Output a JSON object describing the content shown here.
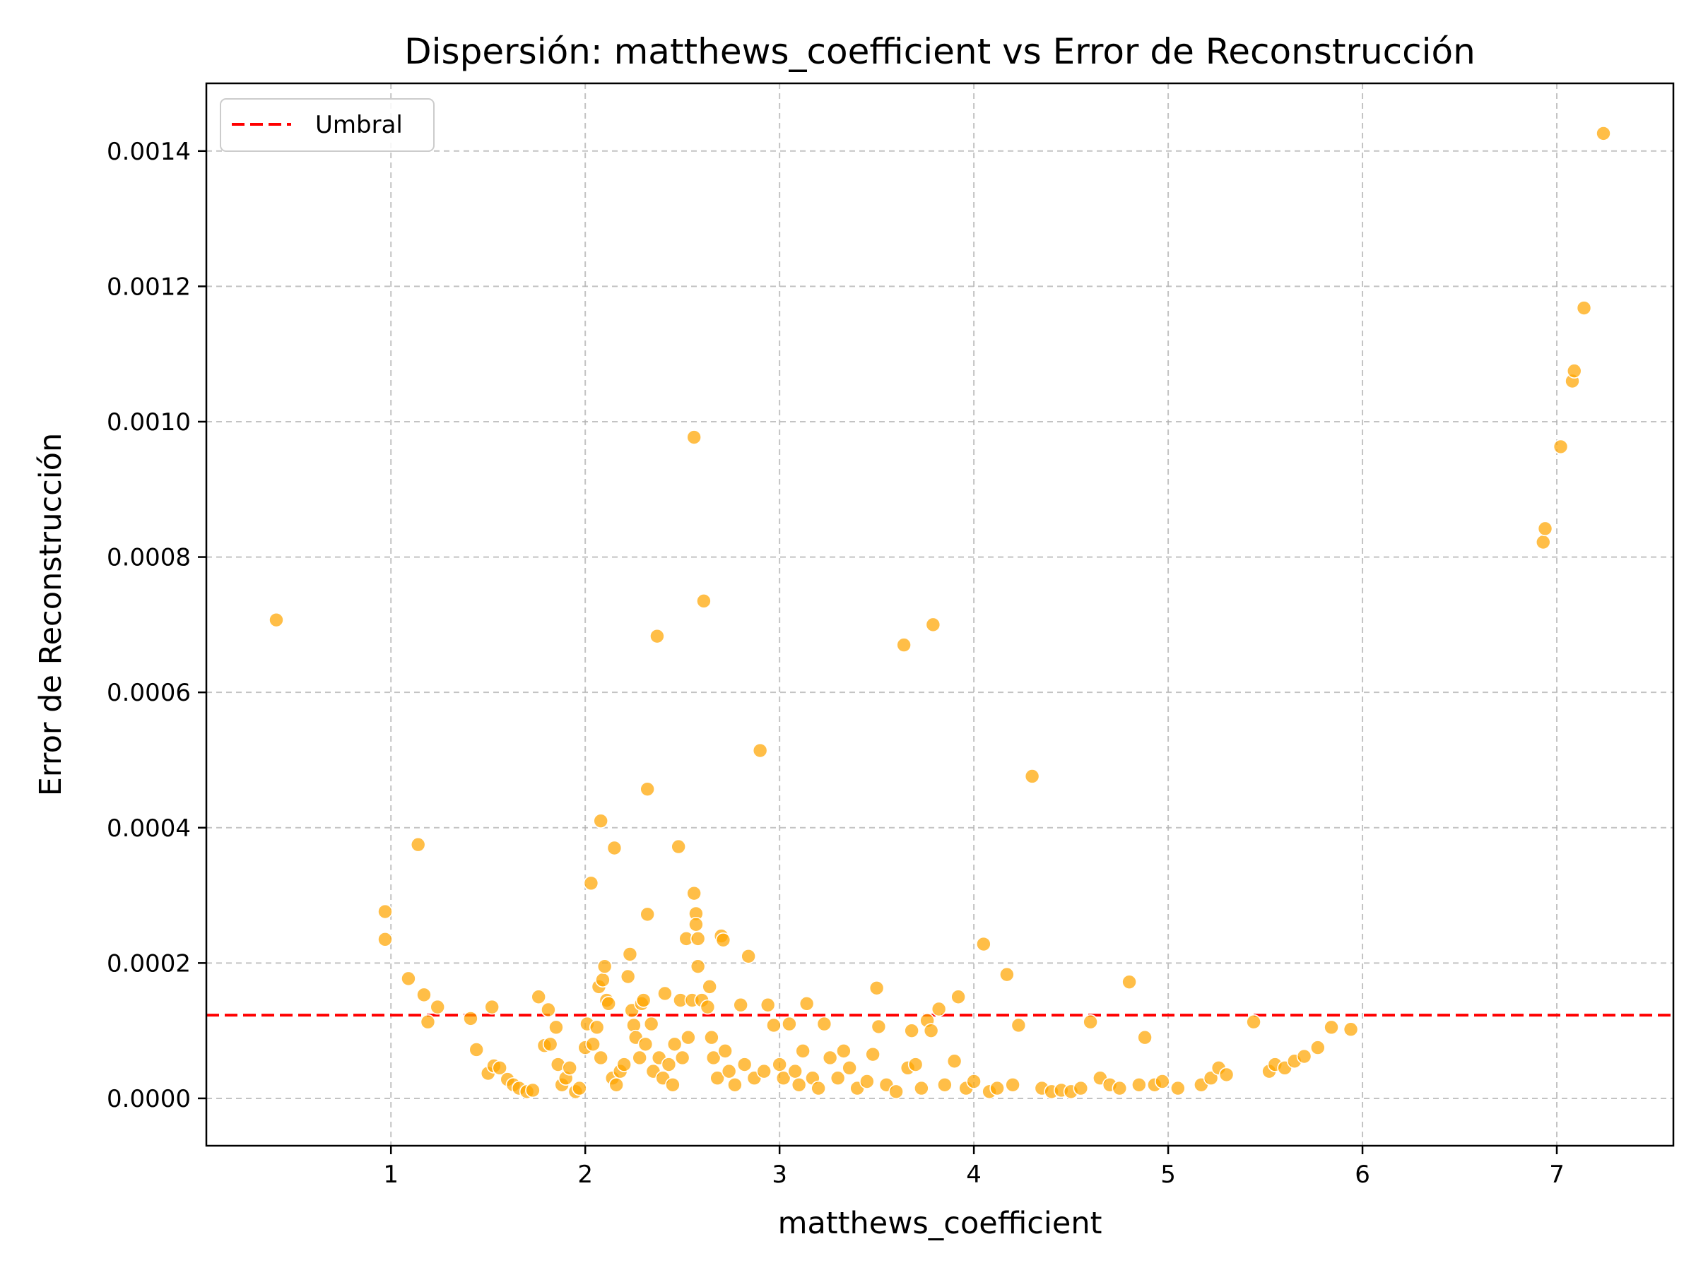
{
  "chart_data": {
    "type": "scatter",
    "title": "Dispersión: matthews_coefficient vs Error de Reconstrucción",
    "xlabel": "matthews_coefficient",
    "ylabel": "Error de Reconstrucción",
    "xlim": [
      0.05,
      7.6
    ],
    "ylim": [
      -7e-05,
      0.0015
    ],
    "xticks": [
      1,
      2,
      3,
      4,
      5,
      6,
      7
    ],
    "yticks": [
      0.0,
      0.0002,
      0.0004,
      0.0006,
      0.0008,
      0.001,
      0.0012,
      0.0014
    ],
    "ytick_labels": [
      "0.0000",
      "0.0002",
      "0.0004",
      "0.0006",
      "0.0008",
      "0.0010",
      "0.0012",
      "0.0014"
    ],
    "grid": true,
    "legend": {
      "placement": "top-left",
      "entries": [
        "Umbral"
      ]
    },
    "threshold": {
      "name": "Umbral",
      "value": 0.000123,
      "color": "#ff0000",
      "style": "dashed"
    },
    "point_color": "#ffa500",
    "points": [
      [
        0.41,
        0.000707
      ],
      [
        0.97,
        0.000276
      ],
      [
        0.97,
        0.000235
      ],
      [
        1.14,
        0.000375
      ],
      [
        1.09,
        0.000177
      ],
      [
        1.17,
        0.000153
      ],
      [
        1.19,
        0.000113
      ],
      [
        1.24,
        0.000135
      ],
      [
        1.41,
        0.000118
      ],
      [
        1.44,
        7.2e-05
      ],
      [
        1.5,
        3.7e-05
      ],
      [
        1.52,
        0.000135
      ],
      [
        1.53,
        4.8e-05
      ],
      [
        1.56,
        4.5e-05
      ],
      [
        1.6,
        2.8e-05
      ],
      [
        1.63,
        2e-05
      ],
      [
        1.66,
        1.5e-05
      ],
      [
        1.7,
        1e-05
      ],
      [
        1.73,
        1.2e-05
      ],
      [
        1.76,
        0.00015
      ],
      [
        1.79,
        7.8e-05
      ],
      [
        1.81,
        0.000131
      ],
      [
        1.82,
        8e-05
      ],
      [
        1.85,
        0.000105
      ],
      [
        1.86,
        5e-05
      ],
      [
        1.88,
        2e-05
      ],
      [
        1.9,
        3e-05
      ],
      [
        1.92,
        4.5e-05
      ],
      [
        1.95,
        1e-05
      ],
      [
        1.97,
        1.5e-05
      ],
      [
        2.0,
        7.5e-05
      ],
      [
        2.01,
        0.00011
      ],
      [
        2.03,
        0.000318
      ],
      [
        2.04,
        8e-05
      ],
      [
        2.06,
        0.000105
      ],
      [
        2.07,
        0.000165
      ],
      [
        2.08,
        0.00041
      ],
      [
        2.08,
        6e-05
      ],
      [
        2.09,
        0.000175
      ],
      [
        2.1,
        0.000195
      ],
      [
        2.11,
        0.000145
      ],
      [
        2.12,
        0.00014
      ],
      [
        2.14,
        3e-05
      ],
      [
        2.15,
        0.00037
      ],
      [
        2.16,
        2e-05
      ],
      [
        2.18,
        4e-05
      ],
      [
        2.2,
        5e-05
      ],
      [
        2.22,
        0.00018
      ],
      [
        2.23,
        0.000213
      ],
      [
        2.24,
        0.00013
      ],
      [
        2.25,
        0.000108
      ],
      [
        2.26,
        9e-05
      ],
      [
        2.28,
        6e-05
      ],
      [
        2.29,
        0.00014
      ],
      [
        2.3,
        0.000145
      ],
      [
        2.31,
        8e-05
      ],
      [
        2.32,
        0.000457
      ],
      [
        2.32,
        0.000272
      ],
      [
        2.34,
        0.00011
      ],
      [
        2.35,
        4e-05
      ],
      [
        2.37,
        0.000683
      ],
      [
        2.38,
        6e-05
      ],
      [
        2.4,
        3e-05
      ],
      [
        2.41,
        0.000155
      ],
      [
        2.43,
        5e-05
      ],
      [
        2.45,
        2e-05
      ],
      [
        2.46,
        8e-05
      ],
      [
        2.48,
        0.000372
      ],
      [
        2.49,
        0.000145
      ],
      [
        2.5,
        6e-05
      ],
      [
        2.52,
        0.000236
      ],
      [
        2.53,
        9e-05
      ],
      [
        2.55,
        0.000145
      ],
      [
        2.56,
        0.000303
      ],
      [
        2.56,
        0.000977
      ],
      [
        2.57,
        0.000273
      ],
      [
        2.57,
        0.000257
      ],
      [
        2.58,
        0.000236
      ],
      [
        2.58,
        0.000195
      ],
      [
        2.6,
        0.000145
      ],
      [
        2.61,
        0.000735
      ],
      [
        2.63,
        0.000135
      ],
      [
        2.64,
        0.000165
      ],
      [
        2.65,
        9e-05
      ],
      [
        2.66,
        6e-05
      ],
      [
        2.68,
        3e-05
      ],
      [
        2.7,
        0.00024
      ],
      [
        2.71,
        0.000234
      ],
      [
        2.72,
        7e-05
      ],
      [
        2.74,
        4e-05
      ],
      [
        2.77,
        2e-05
      ],
      [
        2.8,
        0.000138
      ],
      [
        2.82,
        5e-05
      ],
      [
        2.84,
        0.00021
      ],
      [
        2.87,
        3e-05
      ],
      [
        2.9,
        0.000514
      ],
      [
        2.92,
        4e-05
      ],
      [
        2.94,
        0.000138
      ],
      [
        2.97,
        0.000108
      ],
      [
        3.0,
        5e-05
      ],
      [
        3.02,
        3e-05
      ],
      [
        3.05,
        0.00011
      ],
      [
        3.08,
        4e-05
      ],
      [
        3.1,
        2e-05
      ],
      [
        3.12,
        7e-05
      ],
      [
        3.14,
        0.00014
      ],
      [
        3.17,
        3e-05
      ],
      [
        3.2,
        1.5e-05
      ],
      [
        3.23,
        0.00011
      ],
      [
        3.26,
        6e-05
      ],
      [
        3.3,
        3e-05
      ],
      [
        3.33,
        7e-05
      ],
      [
        3.36,
        4.5e-05
      ],
      [
        3.4,
        1.5e-05
      ],
      [
        3.45,
        2.5e-05
      ],
      [
        3.48,
        6.5e-05
      ],
      [
        3.5,
        0.000163
      ],
      [
        3.51,
        0.000106
      ],
      [
        3.55,
        2e-05
      ],
      [
        3.6,
        1e-05
      ],
      [
        3.64,
        0.00067
      ],
      [
        3.66,
        4.5e-05
      ],
      [
        3.68,
        0.0001
      ],
      [
        3.7,
        5e-05
      ],
      [
        3.73,
        1.5e-05
      ],
      [
        3.76,
        0.000115
      ],
      [
        3.78,
        0.0001
      ],
      [
        3.79,
        0.0007
      ],
      [
        3.82,
        0.000132
      ],
      [
        3.85,
        2e-05
      ],
      [
        3.9,
        5.5e-05
      ],
      [
        3.92,
        0.00015
      ],
      [
        3.96,
        1.5e-05
      ],
      [
        4.0,
        2.5e-05
      ],
      [
        4.05,
        0.000228
      ],
      [
        4.08,
        1e-05
      ],
      [
        4.12,
        1.5e-05
      ],
      [
        4.17,
        0.000183
      ],
      [
        4.2,
        2e-05
      ],
      [
        4.23,
        0.000108
      ],
      [
        4.3,
        0.000476
      ],
      [
        4.35,
        1.5e-05
      ],
      [
        4.4,
        1e-05
      ],
      [
        4.45,
        1.2e-05
      ],
      [
        4.5,
        1e-05
      ],
      [
        4.55,
        1.5e-05
      ],
      [
        4.6,
        0.000113
      ],
      [
        4.65,
        3e-05
      ],
      [
        4.7,
        2e-05
      ],
      [
        4.75,
        1.5e-05
      ],
      [
        4.8,
        0.000172
      ],
      [
        4.85,
        2e-05
      ],
      [
        4.88,
        9e-05
      ],
      [
        4.93,
        2e-05
      ],
      [
        4.97,
        2.5e-05
      ],
      [
        5.05,
        1.5e-05
      ],
      [
        5.17,
        2e-05
      ],
      [
        5.22,
        3e-05
      ],
      [
        5.26,
        4.5e-05
      ],
      [
        5.3,
        3.5e-05
      ],
      [
        5.44,
        0.000113
      ],
      [
        5.52,
        4e-05
      ],
      [
        5.55,
        5e-05
      ],
      [
        5.6,
        4.5e-05
      ],
      [
        5.65,
        5.5e-05
      ],
      [
        5.7,
        6.2e-05
      ],
      [
        5.77,
        7.5e-05
      ],
      [
        5.84,
        0.000105
      ],
      [
        5.94,
        0.000102
      ],
      [
        6.93,
        0.000822
      ],
      [
        6.94,
        0.000842
      ],
      [
        7.02,
        0.000963
      ],
      [
        7.08,
        0.00106
      ],
      [
        7.09,
        0.001075
      ],
      [
        7.14,
        0.001168
      ],
      [
        7.24,
        0.001426
      ]
    ]
  }
}
